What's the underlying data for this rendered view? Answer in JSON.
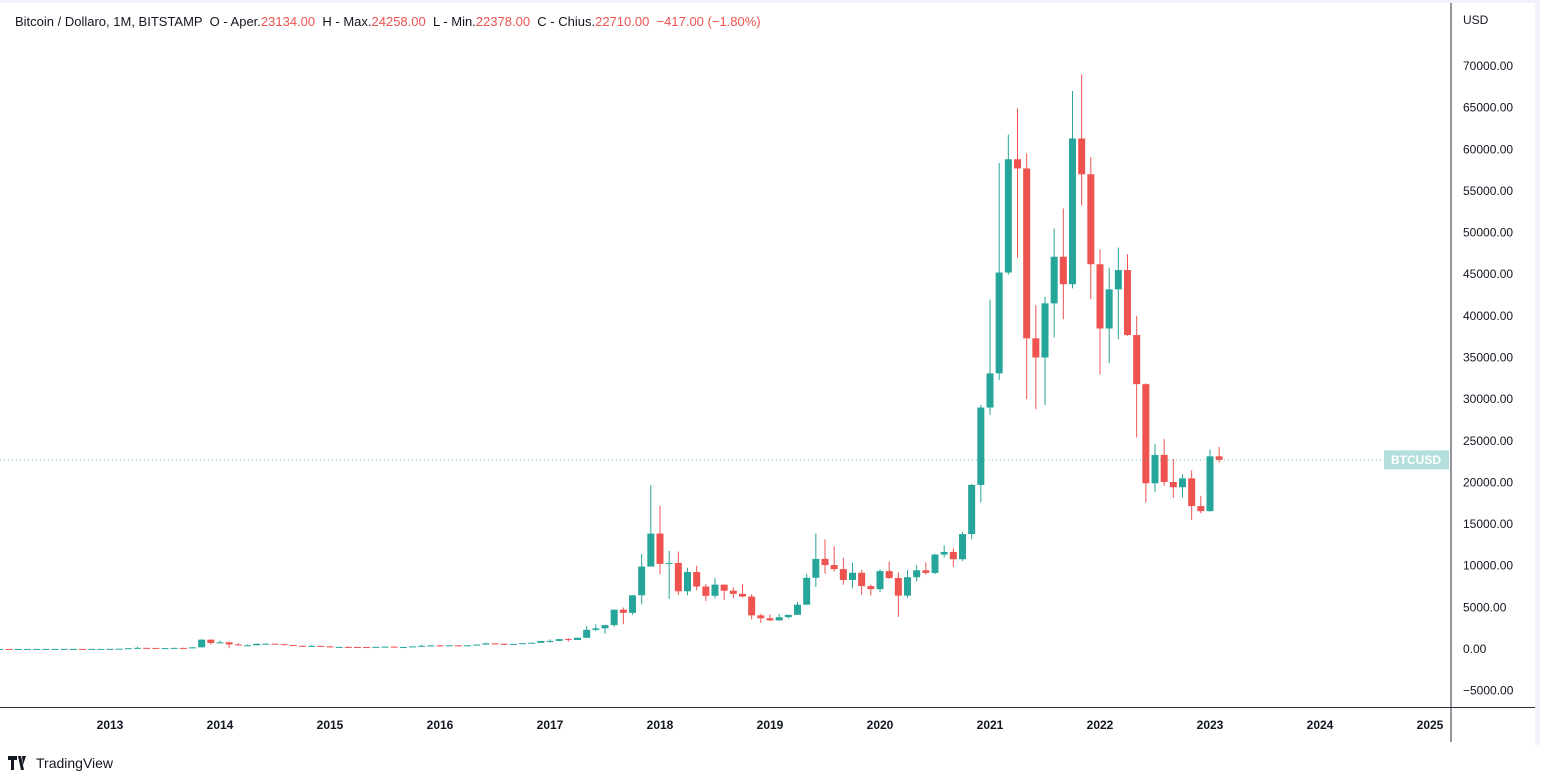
{
  "legend": {
    "symbol": "Bitcoin / Dollaro, 1M, BITSTAMP",
    "open_label": "O - Aper.",
    "open": "23134.00",
    "high_label": "H - Max.",
    "high": "24258.00",
    "low_label": "L - Min.",
    "low": "22378.00",
    "close_label": "C - Chius.",
    "close": "22710.00",
    "change": "−417.00 (−1.80%)"
  },
  "footer": {
    "brand": "TradingView"
  },
  "colors": {
    "up": "#26a69a",
    "down": "#ef5350",
    "last_price_label": "#b2dfdb"
  },
  "chart_data": {
    "type": "candlestick",
    "interval": "1M",
    "currency_label": "USD",
    "last_price_label": "BTCUSD",
    "last_price": 22710,
    "ylim": [
      -8000,
      78000
    ],
    "y_ticks": [
      "70000.00",
      "65000.00",
      "60000.00",
      "55000.00",
      "50000.00",
      "45000.00",
      "40000.00",
      "35000.00",
      "30000.00",
      "25000.00",
      "20000.00",
      "15000.00",
      "10000.00",
      "5000.00",
      "0.00",
      "−5000.00"
    ],
    "x_ticks": [
      "2013",
      "2014",
      "2015",
      "2016",
      "2017",
      "2018",
      "2019",
      "2020",
      "2021",
      "2022",
      "2023",
      "2024",
      "2025"
    ],
    "columns": [
      "month",
      "open",
      "high",
      "low",
      "close"
    ],
    "candles": [
      [
        "2012-01",
        5.3,
        7.2,
        5.3,
        5.5
      ],
      [
        "2012-02",
        5.5,
        6.2,
        4.3,
        4.9
      ],
      [
        "2012-03",
        4.9,
        5.4,
        4.6,
        4.9
      ],
      [
        "2012-04",
        4.9,
        5.3,
        4.8,
        5.0
      ],
      [
        "2012-05",
        5.0,
        5.2,
        4.9,
        5.1
      ],
      [
        "2012-06",
        5.1,
        6.8,
        5.1,
        6.7
      ],
      [
        "2012-07",
        6.7,
        9.3,
        6.5,
        9.2
      ],
      [
        "2012-08",
        9.2,
        15.4,
        7.1,
        10.1
      ],
      [
        "2012-09",
        10.1,
        12.8,
        9.8,
        12.4
      ],
      [
        "2012-10",
        12.4,
        12.9,
        9.8,
        11.2
      ],
      [
        "2012-11",
        11.2,
        12.6,
        10.0,
        12.5
      ],
      [
        "2012-12",
        12.5,
        13.8,
        12.5,
        13.5
      ],
      [
        "2013-01",
        13.5,
        20.4,
        13.3,
        20.4
      ],
      [
        "2013-02",
        20.4,
        33.4,
        19.6,
        33.4
      ],
      [
        "2013-03",
        33.4,
        95,
        33,
        93
      ],
      [
        "2013-04",
        93,
        266,
        50,
        139
      ],
      [
        "2013-05",
        139,
        140,
        80,
        129
      ],
      [
        "2013-06",
        129,
        129,
        87,
        97
      ],
      [
        "2013-07",
        97,
        110,
        65,
        106
      ],
      [
        "2013-08",
        106,
        140,
        98,
        135
      ],
      [
        "2013-09",
        135,
        150,
        115,
        133
      ],
      [
        "2013-10",
        133,
        220,
        109,
        198
      ],
      [
        "2013-11",
        198,
        1163,
        197,
        1120
      ],
      [
        "2013-12",
        1120,
        1163,
        522,
        732
      ],
      [
        "2014-01",
        732,
        1020,
        732,
        803
      ],
      [
        "2014-02",
        803,
        860,
        102,
        550
      ],
      [
        "2014-03",
        550,
        716,
        440,
        444
      ],
      [
        "2014-04",
        444,
        545,
        345,
        447
      ],
      [
        "2014-05",
        447,
        632,
        432,
        628
      ],
      [
        "2014-06",
        628,
        679,
        550,
        636
      ],
      [
        "2014-07",
        636,
        640,
        565,
        580
      ],
      [
        "2014-08",
        580,
        600,
        450,
        476
      ],
      [
        "2014-09",
        476,
        500,
        355,
        385
      ],
      [
        "2014-10",
        385,
        420,
        275,
        338
      ],
      [
        "2014-11",
        338,
        460,
        313,
        375
      ],
      [
        "2014-12",
        375,
        385,
        306,
        318
      ],
      [
        "2015-01",
        318,
        320,
        152,
        217
      ],
      [
        "2015-02",
        217,
        267,
        210,
        254
      ],
      [
        "2015-03",
        254,
        300,
        236,
        244
      ],
      [
        "2015-04",
        244,
        262,
        212,
        236
      ],
      [
        "2015-05",
        236,
        248,
        228,
        230
      ],
      [
        "2015-06",
        230,
        268,
        222,
        263
      ],
      [
        "2015-07",
        263,
        315,
        251,
        284
      ],
      [
        "2015-08",
        284,
        285,
        198,
        230
      ],
      [
        "2015-09",
        230,
        245,
        225,
        236
      ],
      [
        "2015-10",
        236,
        335,
        236,
        314
      ],
      [
        "2015-11",
        314,
        502,
        308,
        378
      ],
      [
        "2015-12",
        378,
        470,
        347,
        430
      ],
      [
        "2016-01",
        430,
        465,
        354,
        368
      ],
      [
        "2016-02",
        368,
        447,
        365,
        437
      ],
      [
        "2016-03",
        437,
        440,
        405,
        416
      ],
      [
        "2016-04",
        416,
        468,
        413,
        448
      ],
      [
        "2016-05",
        448,
        550,
        437,
        531
      ],
      [
        "2016-06",
        531,
        780,
        520,
        673
      ],
      [
        "2016-07",
        673,
        703,
        600,
        624
      ],
      [
        "2016-08",
        624,
        626,
        470,
        573
      ],
      [
        "2016-09",
        573,
        616,
        569,
        609
      ],
      [
        "2016-10",
        609,
        714,
        604,
        698
      ],
      [
        "2016-11",
        698,
        755,
        690,
        742
      ],
      [
        "2016-12",
        742,
        975,
        740,
        966
      ],
      [
        "2017-01",
        966,
        1150,
        750,
        970
      ],
      [
        "2017-02",
        970,
        1200,
        925,
        1190
      ],
      [
        "2017-03",
        1190,
        1300,
        890,
        1080
      ],
      [
        "2017-04",
        1080,
        1350,
        1070,
        1348
      ],
      [
        "2017-05",
        1348,
        2760,
        1340,
        2300
      ],
      [
        "2017-06",
        2300,
        2980,
        2140,
        2480
      ],
      [
        "2017-07",
        2480,
        2900,
        1830,
        2870
      ],
      [
        "2017-08",
        2870,
        4740,
        2670,
        4720
      ],
      [
        "2017-09",
        4720,
        4980,
        2970,
        4340
      ],
      [
        "2017-10",
        4340,
        6450,
        4110,
        6450
      ],
      [
        "2017-11",
        6450,
        11400,
        5380,
        9900
      ],
      [
        "2017-12",
        9900,
        19666,
        9900,
        13860
      ],
      [
        "2018-01",
        13860,
        17180,
        9000,
        10220
      ],
      [
        "2018-02",
        10220,
        11800,
        6000,
        10330
      ],
      [
        "2018-03",
        10330,
        11700,
        6500,
        6930
      ],
      [
        "2018-04",
        6930,
        9750,
        6450,
        9240
      ],
      [
        "2018-05",
        9240,
        10000,
        7050,
        7500
      ],
      [
        "2018-06",
        7500,
        7780,
        5760,
        6390
      ],
      [
        "2018-07",
        6390,
        8490,
        6070,
        7730
      ],
      [
        "2018-08",
        7730,
        7760,
        5880,
        7000
      ],
      [
        "2018-09",
        7000,
        7400,
        6100,
        6620
      ],
      [
        "2018-10",
        6620,
        7770,
        6200,
        6300
      ],
      [
        "2018-11",
        6300,
        6580,
        3560,
        4040
      ],
      [
        "2018-12",
        4040,
        4240,
        3120,
        3690
      ],
      [
        "2019-01",
        3690,
        4140,
        3350,
        3440
      ],
      [
        "2019-02",
        3440,
        4210,
        3380,
        3820
      ],
      [
        "2019-03",
        3820,
        4120,
        3670,
        4100
      ],
      [
        "2019-04",
        4100,
        5640,
        4090,
        5320
      ],
      [
        "2019-05",
        5320,
        9000,
        5310,
        8550
      ],
      [
        "2019-06",
        8550,
        13880,
        7450,
        10820
      ],
      [
        "2019-07",
        10820,
        13170,
        9070,
        10080
      ],
      [
        "2019-08",
        10080,
        12330,
        9330,
        9590
      ],
      [
        "2019-09",
        9590,
        10950,
        7710,
        8290
      ],
      [
        "2019-10",
        8290,
        10370,
        7300,
        9150
      ],
      [
        "2019-11",
        9150,
        9510,
        6520,
        7550
      ],
      [
        "2019-12",
        7550,
        7750,
        6430,
        7190
      ],
      [
        "2020-01",
        7190,
        9580,
        6850,
        9350
      ],
      [
        "2020-02",
        9350,
        10500,
        8430,
        8530
      ],
      [
        "2020-03",
        8530,
        9190,
        3850,
        6410
      ],
      [
        "2020-04",
        6410,
        9470,
        6150,
        8620
      ],
      [
        "2020-05",
        8620,
        10080,
        8110,
        9450
      ],
      [
        "2020-06",
        9450,
        10380,
        8920,
        9140
      ],
      [
        "2020-07",
        9140,
        11440,
        8980,
        11340
      ],
      [
        "2020-08",
        11340,
        12460,
        10980,
        11650
      ],
      [
        "2020-09",
        11650,
        12080,
        9880,
        10780
      ],
      [
        "2020-10",
        10780,
        14100,
        10550,
        13800
      ],
      [
        "2020-11",
        13800,
        19800,
        13200,
        19700
      ],
      [
        "2020-12",
        19700,
        29300,
        17600,
        28990
      ],
      [
        "2021-01",
        28990,
        41950,
        28100,
        33100
      ],
      [
        "2021-02",
        33100,
        58350,
        32300,
        45200
      ],
      [
        "2021-03",
        45200,
        61780,
        44950,
        58800
      ],
      [
        "2021-04",
        58800,
        64900,
        47000,
        57700
      ],
      [
        "2021-05",
        57700,
        59500,
        30000,
        37300
      ],
      [
        "2021-06",
        37300,
        41300,
        28800,
        35000
      ],
      [
        "2021-07",
        35000,
        42300,
        29300,
        41500
      ],
      [
        "2021-08",
        41500,
        50500,
        37400,
        47100
      ],
      [
        "2021-09",
        47100,
        52900,
        39600,
        43800
      ],
      [
        "2021-10",
        43800,
        67000,
        43300,
        61300
      ],
      [
        "2021-11",
        61300,
        69000,
        53250,
        57000
      ],
      [
        "2021-12",
        57000,
        59050,
        42000,
        46200
      ],
      [
        "2022-01",
        46200,
        47990,
        32950,
        38480
      ],
      [
        "2022-02",
        38480,
        45800,
        34300,
        43180
      ],
      [
        "2022-03",
        43180,
        48200,
        37200,
        45500
      ],
      [
        "2022-04",
        45500,
        47400,
        37600,
        37700
      ],
      [
        "2022-05",
        37700,
        40000,
        25400,
        31800
      ],
      [
        "2022-06",
        31800,
        31900,
        17600,
        19900
      ],
      [
        "2022-07",
        19900,
        24650,
        18800,
        23300
      ],
      [
        "2022-08",
        23300,
        25200,
        19600,
        20050
      ],
      [
        "2022-09",
        20050,
        22800,
        18150,
        19420
      ],
      [
        "2022-10",
        19420,
        20970,
        18200,
        20490
      ],
      [
        "2022-11",
        20490,
        21450,
        15500,
        17160
      ],
      [
        "2022-12",
        17160,
        18400,
        16300,
        16550
      ],
      [
        "2023-01",
        16550,
        23950,
        16500,
        23130
      ],
      [
        "2023-02",
        23134,
        24258,
        22378,
        22710
      ]
    ]
  }
}
